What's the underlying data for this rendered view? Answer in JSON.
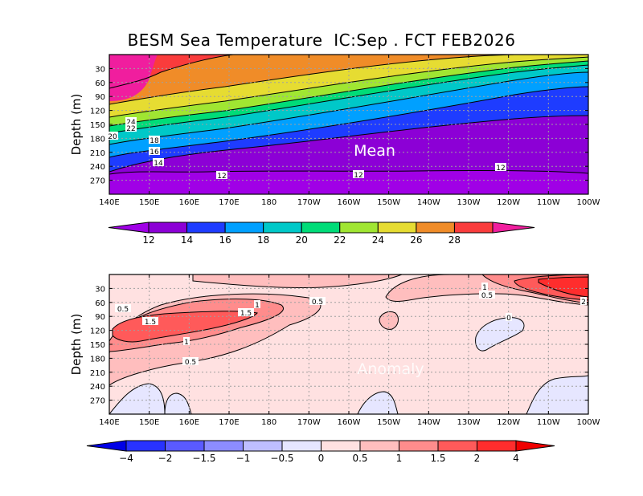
{
  "chart_data": {
    "title": "BESM Sea Temperature  IC:Sep . FCT FEB2026",
    "x_ticks": [
      "140E",
      "150E",
      "160E",
      "170E",
      "180",
      "170W",
      "160W",
      "150W",
      "140W",
      "130W",
      "120W",
      "110W",
      "100W"
    ],
    "y_ticks": [
      "30",
      "60",
      "90",
      "120",
      "150",
      "180",
      "210",
      "240",
      "270"
    ],
    "ylabel": "Depth (m)",
    "panels": [
      {
        "name": "mean",
        "type": "heatmap",
        "label": "Mean",
        "units_hint": "degC",
        "levels": [
          12,
          14,
          16,
          18,
          20,
          22,
          24,
          26,
          28
        ],
        "colors": [
          "#a000e6",
          "#8c00d6",
          "#1e3cff",
          "#00a0ff",
          "#00c8c8",
          "#00dc78",
          "#a0e632",
          "#e6dc32",
          "#f08c28",
          "#fa3c3c",
          "#f01e9e"
        ],
        "colorbar_labels": [
          "12",
          "14",
          "16",
          "18",
          "20",
          "22",
          "24",
          "26",
          "28"
        ],
        "contour_labels": [
          "24",
          "22",
          "20",
          "18",
          "16",
          "14",
          "12",
          "12",
          "12"
        ]
      },
      {
        "name": "anomaly",
        "type": "heatmap",
        "label": "Anomaly",
        "levels": [
          -4,
          -2,
          -1.5,
          -1,
          -0.5,
          0,
          0.5,
          1,
          1.5,
          2,
          4
        ],
        "colors": [
          "#0000e6",
          "#2832ff",
          "#5a5aff",
          "#8c8cff",
          "#bebeff",
          "#e6e6ff",
          "#ffe1e1",
          "#ffbebe",
          "#ff8c8c",
          "#ff5a5a",
          "#ff2d2d",
          "#f00000"
        ],
        "colorbar_labels": [
          "-4",
          "-2",
          "-1.5",
          "-1",
          "-0.5",
          "0",
          "0.5",
          "1",
          "1.5",
          "2",
          "4"
        ],
        "contour_labels": [
          "0.5",
          "1.5",
          "1.5",
          "1",
          "1",
          "0.5",
          "0.5",
          "1",
          "0.5",
          "0",
          "2"
        ]
      }
    ]
  }
}
